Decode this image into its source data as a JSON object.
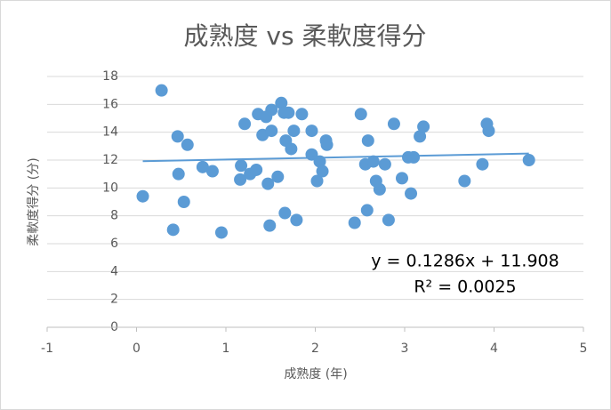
{
  "chart_data": {
    "type": "scatter",
    "title": "成熟度 vs 柔軟度得分",
    "x_label": "成熟度 (年)",
    "y_label": "柔軟度得分 (分)",
    "color": "#5b9bd5",
    "grid": true,
    "xlim": [
      -1,
      5
    ],
    "xticks": [
      -1,
      0,
      1,
      2,
      3,
      4,
      5
    ],
    "ylim": [
      0,
      18
    ],
    "yticks": [
      0,
      2,
      4,
      6,
      8,
      10,
      12,
      14,
      16,
      18
    ],
    "x": [
      0.07,
      0.28,
      0.41,
      0.46,
      0.47,
      0.53,
      0.57,
      0.74,
      0.85,
      0.95,
      1.16,
      1.17,
      1.21,
      1.27,
      1.34,
      1.36,
      1.41,
      1.45,
      1.47,
      1.49,
      1.51,
      1.51,
      1.58,
      1.62,
      1.65,
      1.66,
      1.67,
      1.7,
      1.73,
      1.76,
      1.79,
      1.85,
      1.96,
      1.96,
      2.02,
      2.05,
      2.08,
      2.12,
      2.13,
      2.44,
      2.51,
      2.56,
      2.58,
      2.59,
      2.65,
      2.68,
      2.72,
      2.78,
      2.82,
      2.88,
      2.97,
      3.04,
      3.07,
      3.1,
      3.17,
      3.21,
      3.67,
      3.87,
      3.92,
      3.94,
      4.39
    ],
    "values": [
      9.4,
      17.0,
      7.0,
      13.7,
      11.0,
      9.0,
      13.1,
      11.5,
      11.2,
      6.8,
      10.6,
      11.6,
      14.6,
      11.0,
      11.3,
      15.3,
      13.8,
      15.1,
      10.3,
      7.3,
      14.1,
      15.6,
      10.8,
      16.1,
      15.4,
      8.2,
      13.4,
      15.4,
      12.8,
      14.1,
      7.7,
      15.3,
      14.1,
      12.4,
      10.5,
      11.9,
      11.2,
      13.4,
      13.1,
      7.5,
      15.3,
      11.7,
      8.4,
      13.4,
      11.9,
      10.5,
      9.9,
      11.7,
      7.7,
      14.6,
      10.7,
      12.2,
      9.6,
      12.2,
      13.7,
      14.4,
      10.5,
      11.7,
      14.6,
      14.1,
      12.0
    ],
    "trendline": {
      "slope": 0.1286,
      "intercept": 11.908,
      "equation": "y = 0.1286x + 11.908",
      "r2": "R² = 0.0025"
    }
  }
}
